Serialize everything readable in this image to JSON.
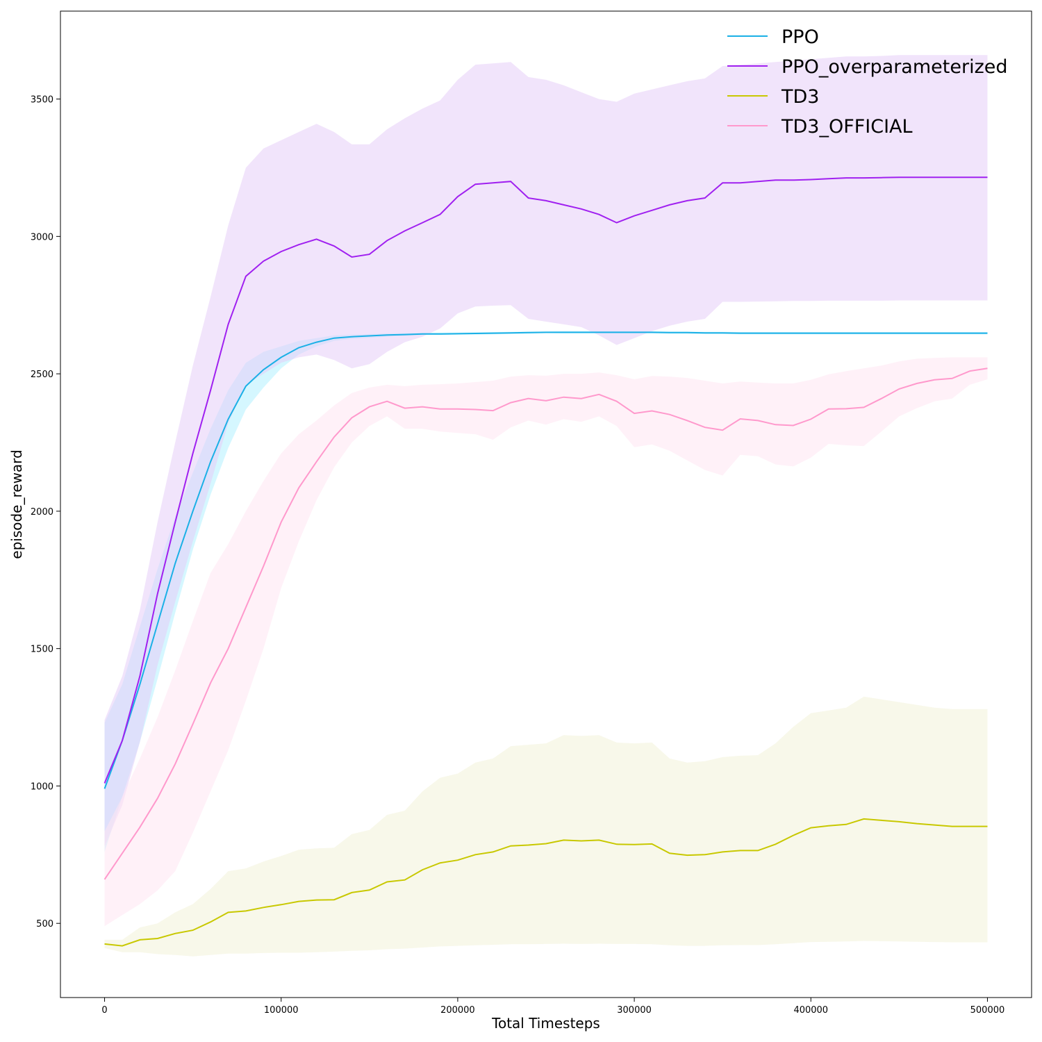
{
  "chart_data": {
    "type": "line",
    "xlabel": "Total Timesteps",
    "ylabel": "episode_reward",
    "xlim": [
      -25000,
      525000
    ],
    "ylim": [
      230,
      3820
    ],
    "xticks": [
      0,
      100000,
      200000,
      300000,
      400000,
      500000
    ],
    "yticks": [
      500,
      1000,
      1500,
      2000,
      2500,
      3000,
      3500
    ],
    "grid": false,
    "legend_position": "top-right",
    "x": [
      0,
      10000,
      20000,
      30000,
      40000,
      50000,
      60000,
      70000,
      80000,
      90000,
      100000,
      110000,
      120000,
      130000,
      140000,
      150000,
      160000,
      170000,
      180000,
      190000,
      200000,
      210000,
      220000,
      230000,
      240000,
      250000,
      260000,
      270000,
      280000,
      290000,
      300000,
      310000,
      320000,
      330000,
      340000,
      350000,
      360000,
      370000,
      380000,
      390000,
      400000,
      410000,
      420000,
      430000,
      440000,
      450000,
      460000,
      470000,
      480000,
      490000,
      500000
    ],
    "series": [
      {
        "name": "PPO",
        "color": "#1ab0e6",
        "band_color": "#b3f0ff",
        "values": [
          990,
          1165,
          1370,
          1590,
          1810,
          2000,
          2180,
          2335,
          2455,
          2515,
          2560,
          2595,
          2615,
          2630,
          2635,
          2638,
          2641,
          2643,
          2645,
          2645,
          2646,
          2647,
          2648,
          2649,
          2650,
          2651,
          2651,
          2651,
          2651,
          2651,
          2651,
          2651,
          2650,
          2650,
          2649,
          2649,
          2648,
          2648,
          2648,
          2648,
          2648,
          2648,
          2648,
          2648,
          2648,
          2648,
          2648,
          2648,
          2648,
          2648,
          2648
        ],
        "upper": [
          1230,
          1370,
          1580,
          1790,
          1980,
          2140,
          2300,
          2440,
          2540,
          2580,
          2600,
          2620,
          2630,
          2640,
          2643,
          2645,
          2647,
          2648,
          2649,
          2650,
          2650,
          2651,
          2652,
          2653,
          2654,
          2654,
          2655,
          2655,
          2655,
          2655,
          2655,
          2655,
          2654,
          2654,
          2653,
          2653,
          2652,
          2652,
          2652,
          2652,
          2652,
          2652,
          2652,
          2652,
          2652,
          2652,
          2652,
          2652,
          2652,
          2652,
          2652
        ],
        "lower": [
          760,
          960,
          1160,
          1390,
          1630,
          1860,
          2060,
          2230,
          2370,
          2450,
          2520,
          2570,
          2600,
          2620,
          2627,
          2631,
          2635,
          2638,
          2641,
          2641,
          2642,
          2643,
          2644,
          2645,
          2646,
          2648,
          2647,
          2647,
          2647,
          2647,
          2647,
          2647,
          2646,
          2646,
          2645,
          2645,
          2644,
          2644,
          2644,
          2644,
          2644,
          2644,
          2644,
          2644,
          2644,
          2644,
          2644,
          2644,
          2644,
          2644,
          2644
        ]
      },
      {
        "name": "PPO_overparameterized",
        "color": "#a020f0",
        "band_color": "#e6cdf7",
        "values": [
          1010,
          1165,
          1400,
          1700,
          1960,
          2210,
          2440,
          2680,
          2855,
          2910,
          2945,
          2970,
          2990,
          2965,
          2925,
          2935,
          2985,
          3020,
          3050,
          3080,
          3145,
          3190,
          3195,
          3200,
          3140,
          3130,
          3115,
          3100,
          3080,
          3050,
          3075,
          3095,
          3115,
          3130,
          3140,
          3195,
          3195,
          3200,
          3205,
          3205,
          3207,
          3210,
          3213,
          3213,
          3214,
          3215,
          3215,
          3215,
          3215,
          3215,
          3215
        ],
        "upper": [
          1240,
          1400,
          1640,
          1960,
          2250,
          2530,
          2780,
          3040,
          3250,
          3320,
          3350,
          3380,
          3410,
          3380,
          3335,
          3335,
          3390,
          3430,
          3465,
          3495,
          3570,
          3625,
          3630,
          3635,
          3580,
          3570,
          3550,
          3525,
          3500,
          3490,
          3520,
          3535,
          3550,
          3565,
          3575,
          3620,
          3625,
          3630,
          3635,
          3640,
          3645,
          3650,
          3655,
          3655,
          3657,
          3660,
          3660,
          3660,
          3660,
          3660,
          3660
        ],
        "lower": [
          780,
          930,
          1160,
          1440,
          1670,
          1890,
          2100,
          2320,
          2460,
          2500,
          2540,
          2560,
          2570,
          2550,
          2520,
          2535,
          2580,
          2615,
          2635,
          2665,
          2720,
          2745,
          2748,
          2750,
          2700,
          2690,
          2680,
          2670,
          2640,
          2605,
          2630,
          2655,
          2675,
          2690,
          2700,
          2762,
          2762,
          2763,
          2764,
          2765,
          2765,
          2766,
          2766,
          2766,
          2766,
          2767,
          2767,
          2767,
          2767,
          2767,
          2767
        ]
      },
      {
        "name": "TD3",
        "color": "#c8c800",
        "band_color": "#f3f3d8",
        "values": [
          425,
          418,
          440,
          445,
          463,
          475,
          505,
          540,
          545,
          558,
          568,
          580,
          585,
          586,
          612,
          621,
          651,
          658,
          695,
          720,
          730,
          750,
          760,
          782,
          785,
          790,
          803,
          800,
          803,
          788,
          787,
          789,
          755,
          748,
          750,
          760,
          765,
          765,
          788,
          820,
          848,
          855,
          860,
          880,
          875,
          870,
          863,
          858,
          853,
          853,
          853
        ],
        "upper": [
          440,
          440,
          485,
          500,
          540,
          570,
          625,
          690,
          700,
          725,
          745,
          768,
          773,
          775,
          825,
          840,
          895,
          910,
          980,
          1030,
          1045,
          1085,
          1100,
          1145,
          1150,
          1155,
          1185,
          1182,
          1185,
          1158,
          1155,
          1158,
          1100,
          1085,
          1090,
          1105,
          1110,
          1112,
          1155,
          1215,
          1265,
          1275,
          1285,
          1325,
          1315,
          1305,
          1295,
          1285,
          1280,
          1280,
          1280
        ],
        "lower": [
          410,
          395,
          395,
          388,
          385,
          380,
          385,
          390,
          390,
          392,
          393,
          393,
          395,
          397,
          400,
          402,
          406,
          408,
          412,
          416,
          418,
          420,
          422,
          424,
          424,
          425,
          426,
          425,
          426,
          425,
          425,
          424,
          420,
          418,
          418,
          420,
          421,
          421,
          424,
          428,
          432,
          433,
          434,
          436,
          435,
          434,
          433,
          432,
          431,
          431,
          431
        ]
      },
      {
        "name": "TD3_OFFICIAL",
        "color": "#ff99cc",
        "band_color": "#ffe5f3",
        "values": [
          660,
          755,
          850,
          955,
          1080,
          1225,
          1375,
          1500,
          1650,
          1800,
          1960,
          2085,
          2180,
          2270,
          2340,
          2380,
          2400,
          2375,
          2380,
          2372,
          2372,
          2370,
          2366,
          2395,
          2410,
          2402,
          2415,
          2410,
          2425,
          2400,
          2356,
          2365,
          2352,
          2330,
          2305,
          2295,
          2336,
          2330,
          2315,
          2312,
          2335,
          2372,
          2373,
          2378,
          2410,
          2445,
          2465,
          2478,
          2483,
          2510,
          2520
        ],
        "upper": [
          835,
          960,
          1100,
          1250,
          1420,
          1600,
          1775,
          1880,
          2000,
          2110,
          2210,
          2280,
          2330,
          2385,
          2430,
          2450,
          2460,
          2455,
          2460,
          2462,
          2465,
          2470,
          2475,
          2490,
          2495,
          2493,
          2500,
          2500,
          2505,
          2495,
          2480,
          2492,
          2490,
          2485,
          2475,
          2465,
          2472,
          2468,
          2465,
          2465,
          2478,
          2498,
          2510,
          2520,
          2530,
          2545,
          2555,
          2558,
          2560,
          2560,
          2560
        ],
        "lower": [
          490,
          530,
          570,
          620,
          690,
          830,
          980,
          1130,
          1310,
          1500,
          1720,
          1890,
          2040,
          2160,
          2250,
          2310,
          2345,
          2300,
          2300,
          2290,
          2285,
          2280,
          2260,
          2305,
          2330,
          2315,
          2335,
          2325,
          2345,
          2310,
          2233,
          2243,
          2220,
          2185,
          2150,
          2130,
          2205,
          2200,
          2170,
          2163,
          2195,
          2245,
          2240,
          2237,
          2290,
          2345,
          2375,
          2400,
          2410,
          2460,
          2480
        ]
      }
    ]
  }
}
